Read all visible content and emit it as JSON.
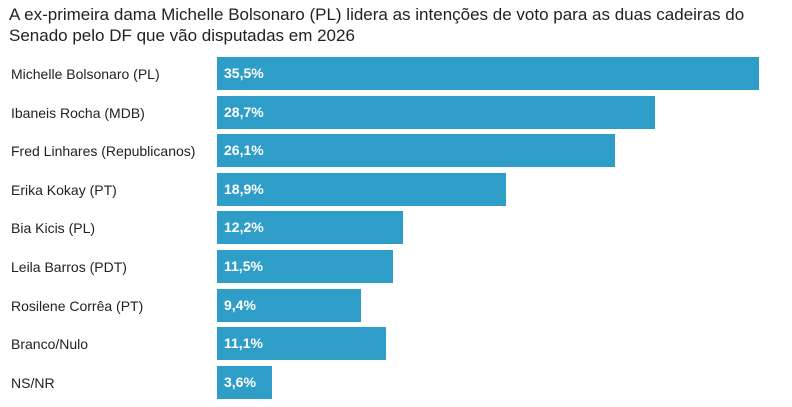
{
  "title": "A ex-primeira dama Michelle Bolsonaro (PL) lidera as intenções de voto para as duas cadeiras do Senado pelo DF que vão disputadas em 2026",
  "colors": {
    "bar": "#2e9ec9",
    "value_text": "#ffffff",
    "text": "#222222"
  },
  "chart_data": {
    "type": "bar",
    "orientation": "horizontal",
    "title": "A ex-primeira dama Michelle Bolsonaro (PL) lidera as intenções de voto para as duas cadeiras do Senado pelo DF que vão disputadas em 2026",
    "xlabel": "",
    "ylabel": "",
    "xlim": [
      0,
      35.5
    ],
    "grid": false,
    "legend": "none",
    "categories": [
      "Michelle Bolsonaro (PL)",
      "Ibaneis Rocha (MDB)",
      "Fred Linhares (Republicanos)",
      "Erika Kokay (PT)",
      "Bia Kicis (PL)",
      "Leila Barros (PDT)",
      "Rosilene Corrêa (PT)",
      "Branco/Nulo",
      "NS/NR"
    ],
    "values": [
      35.5,
      28.7,
      26.1,
      18.9,
      12.2,
      11.5,
      9.4,
      11.1,
      3.6
    ],
    "value_labels": [
      "35,5%",
      "28,7%",
      "26,1%",
      "18,9%",
      "12,2%",
      "11,5%",
      "9,4%",
      "11,1%",
      "3,6%"
    ]
  }
}
